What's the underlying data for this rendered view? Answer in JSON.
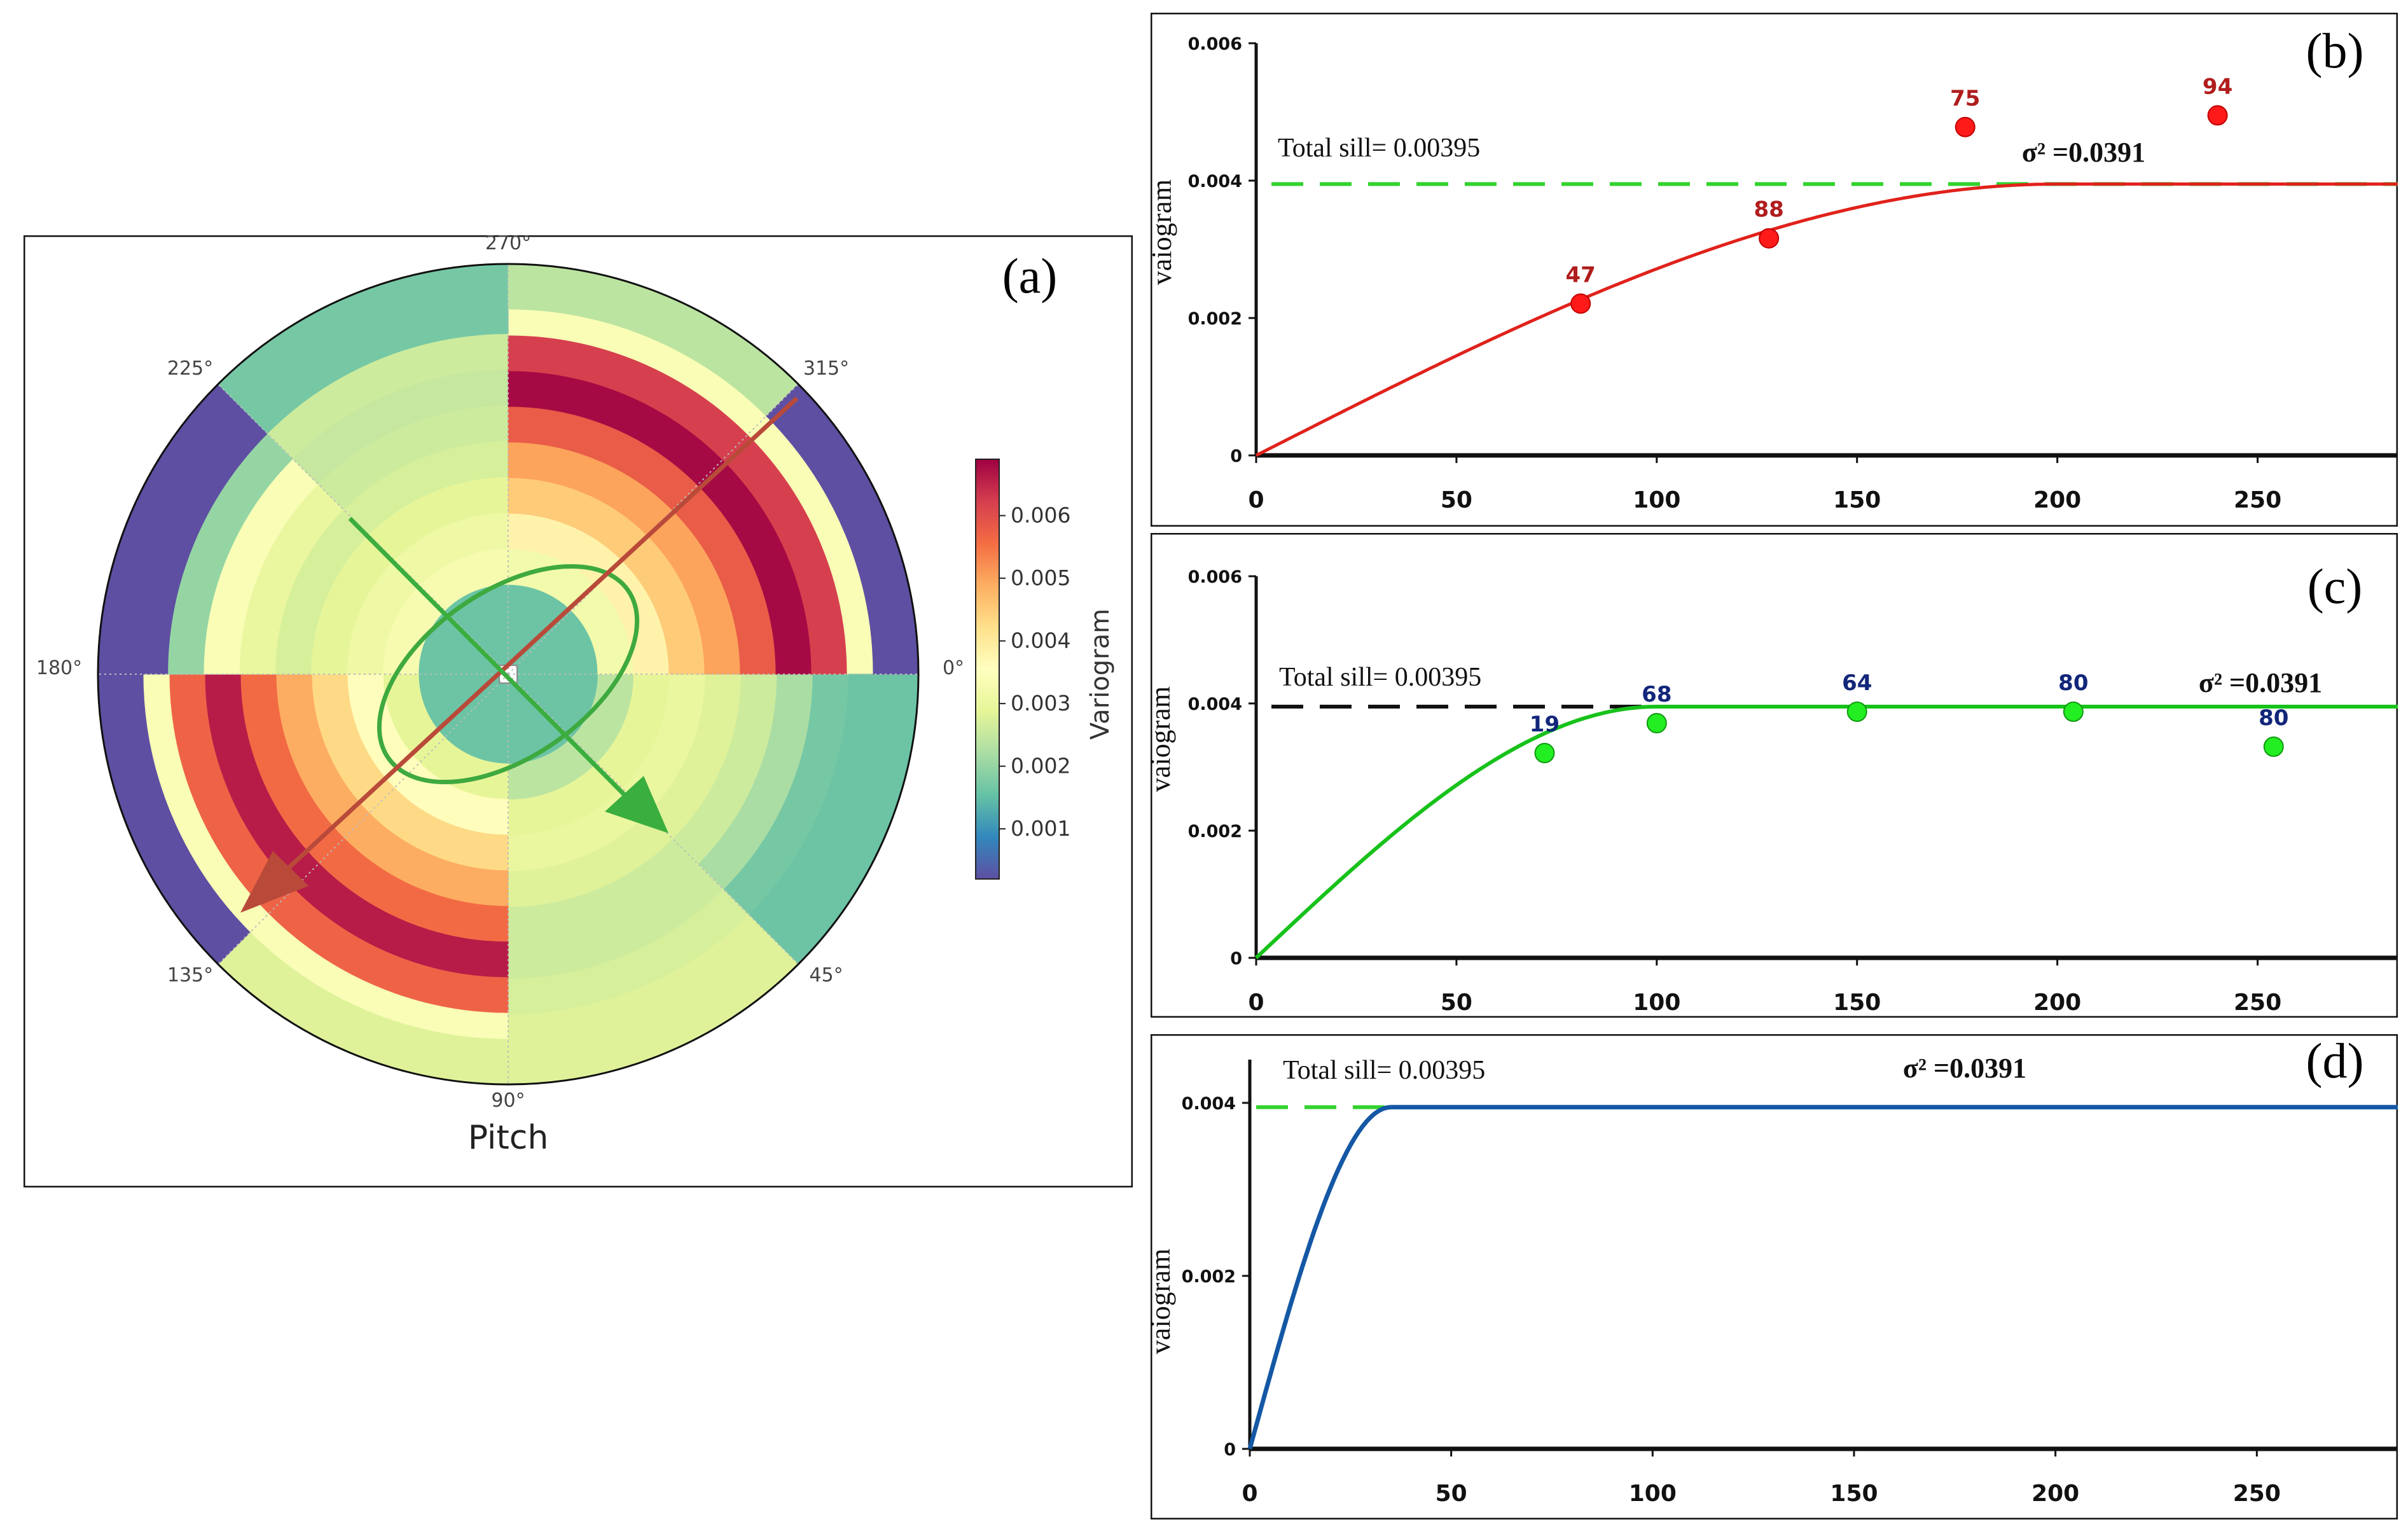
{
  "colors": {
    "red_curve": "#e0221b",
    "green_curve": "#17c21a",
    "blue_curve": "#1458a5",
    "sill_green": "#32d32e",
    "sill_black": "#111111",
    "red_label": "#b01d1d",
    "blue_label": "#12267a",
    "arrow_red": "#b94a3a",
    "arrow_green": "#3aae3e",
    "ellipse": "#3ea93f"
  },
  "chart_data": [
    {
      "id": "a",
      "type": "polar-heatmap",
      "panel_label": "(a)",
      "xlabel": "Pitch",
      "angle_labels": [
        "0°",
        "45°",
        "90°",
        "135°",
        "180°",
        "225°",
        "270°",
        "315°"
      ],
      "angle_degrees": [
        0,
        45,
        90,
        135,
        180,
        225,
        270,
        315
      ],
      "colorbar": {
        "label": "Variogram",
        "ticks": [
          "0.001",
          "0.002",
          "0.003",
          "0.004",
          "0.005",
          "0.006"
        ],
        "tick_values": [
          0.001,
          0.002,
          0.003,
          0.004,
          0.005,
          0.006
        ],
        "range": [
          0.0002,
          0.0069
        ],
        "colormap": "Spectral_r"
      },
      "ring_count": 8,
      "sectors": [
        {
          "start": 0,
          "end": 45,
          "values": [
            0.0016,
            0.0024,
            0.0029,
            0.003,
            0.0028,
            0.0026,
            0.0022,
            0.0017
          ]
        },
        {
          "start": 45,
          "end": 90,
          "values": [
            0.0016,
            0.0024,
            0.0029,
            0.003,
            0.0028,
            0.0026,
            0.0026,
            0.0027
          ]
        },
        {
          "start": 90,
          "end": 180,
          "values": [
            0.0016,
            0.0029,
            0.0036,
            0.0043,
            0.0049,
            0.0056,
            0.0066,
            0.0057,
            0.0034,
            0.0028
          ]
        },
        {
          "start": 180,
          "end": 225,
          "values": [
            0.0016,
            0.0033,
            0.0031,
            0.0029,
            0.0027,
            0.003,
            0.0034,
            0.002
          ]
        },
        {
          "start": 225,
          "end": 270,
          "values": [
            0.0016,
            0.0033,
            0.0031,
            0.0029,
            0.0027,
            0.0026,
            0.0025,
            0.0026
          ]
        },
        {
          "start": 270,
          "end": 360,
          "values": [
            0.0016,
            0.0032,
            0.0038,
            0.0045,
            0.005,
            0.0058,
            0.0068,
            0.0062,
            0.0034,
            0.003
          ]
        }
      ],
      "outer_ring_overrides": [
        {
          "start": 0,
          "end": 45,
          "value": 0.0016
        },
        {
          "start": 45,
          "end": 90,
          "value": 0.0028
        },
        {
          "start": 90,
          "end": 135,
          "value": 0.0028
        },
        {
          "start": 135,
          "end": 180,
          "value": 0.0002
        },
        {
          "start": 180,
          "end": 225,
          "value": 0.0002
        },
        {
          "start": 225,
          "end": 270,
          "value": 0.0017
        },
        {
          "start": 270,
          "end": 315,
          "value": 0.0024
        },
        {
          "start": 315,
          "end": 360,
          "value": 0.0002
        }
      ],
      "annotations": [
        "major axis arrow toward 135°",
        "minor axis arrow toward 45°",
        "anisotropy ellipse"
      ]
    },
    {
      "id": "b",
      "type": "scatter+line",
      "panel_label": "(b)",
      "ylabel": "vaiogram",
      "xlim": [
        0,
        285
      ],
      "ylim": [
        0,
        0.006
      ],
      "xticks": [
        "0",
        "50",
        "100",
        "150",
        "200",
        "250"
      ],
      "xtick_values": [
        0,
        50,
        100,
        150,
        200,
        250
      ],
      "yticks": [
        "0",
        "0.002",
        "0.004",
        "0.006"
      ],
      "ytick_values": [
        0,
        0.002,
        0.004,
        0.006
      ],
      "sill": {
        "value": 0.00395,
        "label": "Total sill= 0.00395"
      },
      "sigma_label": "σ² =0.0391",
      "model": {
        "type": "spherical",
        "range": 200,
        "sill": 0.00395
      },
      "points": [
        {
          "x": 81,
          "y": 0.00221,
          "label": "47"
        },
        {
          "x": 128,
          "y": 0.00316,
          "label": "88"
        },
        {
          "x": 177,
          "y": 0.00478,
          "label": "75"
        },
        {
          "x": 240,
          "y": 0.00495,
          "label": "94"
        }
      ]
    },
    {
      "id": "c",
      "type": "scatter+line",
      "panel_label": "(c)",
      "ylabel": "vaiogram",
      "xlim": [
        0,
        285
      ],
      "ylim": [
        0,
        0.006
      ],
      "xticks": [
        "0",
        "50",
        "100",
        "150",
        "200",
        "250"
      ],
      "xtick_values": [
        0,
        50,
        100,
        150,
        200,
        250
      ],
      "yticks": [
        "0",
        "0.002",
        "0.004",
        "0.006"
      ],
      "ytick_values": [
        0,
        0.002,
        0.004,
        0.006
      ],
      "sill": {
        "value": 0.00395,
        "label": "Total sill= 0.00395"
      },
      "sigma_label": "σ² =0.0391",
      "model": {
        "type": "spherical",
        "range": 100,
        "sill": 0.00395
      },
      "points": [
        {
          "x": 72,
          "y": 0.00322,
          "label": "19"
        },
        {
          "x": 100,
          "y": 0.00369,
          "label": "68"
        },
        {
          "x": 150,
          "y": 0.00387,
          "label": "64"
        },
        {
          "x": 204,
          "y": 0.00387,
          "label": "80"
        },
        {
          "x": 254,
          "y": 0.00332,
          "label": "80"
        }
      ]
    },
    {
      "id": "d",
      "type": "line",
      "panel_label": "(d)",
      "ylabel": "vaiogram",
      "xlim": [
        0,
        285
      ],
      "ylim": [
        0,
        0.0045
      ],
      "xticks": [
        "0",
        "50",
        "100",
        "150",
        "200",
        "250"
      ],
      "xtick_values": [
        0,
        50,
        100,
        150,
        200,
        250
      ],
      "yticks": [
        "0",
        "0.002",
        "0.004"
      ],
      "ytick_values": [
        0,
        0.002,
        0.004
      ],
      "sill": {
        "value": 0.00395,
        "label": "Total sill= 0.00395"
      },
      "sigma_label": "σ² =0.0391",
      "model": {
        "type": "spherical",
        "range": 35,
        "sill": 0.00395
      },
      "points": []
    }
  ]
}
